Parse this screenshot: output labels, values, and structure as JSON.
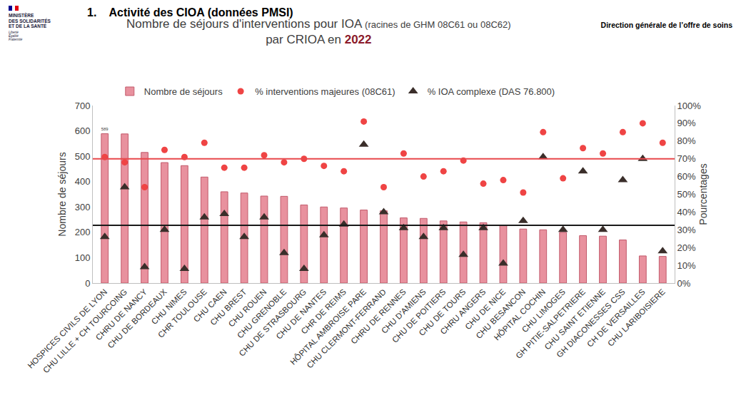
{
  "header": {
    "ministry": [
      "MINISTÈRE",
      "DES SOLIDARITÉS",
      "ET DE LA SANTÉ"
    ],
    "motto": [
      "Liberté",
      "Égalité",
      "Fraternité"
    ],
    "section": "1.    Activité des CIOA (données PMSI)",
    "department": "Direction générale de l’offre de soins"
  },
  "chart_data": {
    "type": "bar",
    "title": "Nombre de séjours d'interventions pour IOA",
    "title_note": "(racines de GHM 08C61 ou 08C62)",
    "subtitle": "par CRIOA en",
    "year": "2022",
    "y_label": "Nombre de séjours",
    "y2_label": "Pourcentages",
    "categories": [
      "HOSPICES CIVILS DE LYON",
      "CHU LILLE + CH TOURCOING",
      "CHRU DE NANCY",
      "CHU DE BORDEAUX",
      "CHU NIMES",
      "CHR TOULOUSE",
      "CHU CAEN",
      "CHU BREST",
      "CHU ROUEN",
      "CHU GRENOBLE",
      "CHU DE STRASBOURG",
      "CHU DE NANTES",
      "CHR DE REIMS",
      "HÔPITAL AMBROISE PARE",
      "CHU CLERMONT-FERRAND",
      "CHRU DE RENNES",
      "CHU D'AMIENS",
      "CHU DE POITIERS",
      "CHU DE TOURS",
      "CHRU ANGERS",
      "CHU DE NICE",
      "CHU BESANCON",
      "HÔPITAL COCHIN",
      "CHU LIMOGES",
      "GH PITIE-SALPETRIERE",
      "CHU SAINT ETIENNE",
      "GH DIACONESSES CSS",
      "CH DE VERSAILLES",
      "CHU LARIBOISIERE"
    ],
    "series": [
      {
        "name": "Nombre de séjours",
        "type": "bar",
        "color": "#e8919e",
        "data_labels": true,
        "values": [
          589,
          588,
          515,
          475,
          463,
          418,
          360,
          355,
          343,
          342,
          308,
          300,
          296,
          288,
          285,
          257,
          255,
          245,
          241,
          238,
          228,
          213,
          210,
          200,
          187,
          185,
          170,
          107,
          105
        ],
        "value_labels": [
          "589",
          null,
          null,
          null,
          null,
          null,
          null,
          null,
          null,
          null,
          null,
          null,
          null,
          null,
          null,
          null,
          null,
          null,
          null,
          null,
          null,
          null,
          null,
          null,
          null,
          null,
          null,
          null,
          null
        ]
      },
      {
        "name": "% interventions majeures (08C61)",
        "type": "scatter",
        "marker": "circle",
        "color": "#ef4444",
        "axis": "y2",
        "values": [
          71,
          68,
          54,
          75,
          71,
          79,
          65,
          65,
          72,
          68,
          70,
          66,
          63,
          91,
          54,
          73,
          60,
          63,
          69,
          56,
          58,
          51,
          85,
          59,
          76,
          73,
          85,
          90,
          79
        ]
      },
      {
        "name": "% IOA complexe (DAS 76.800)",
        "type": "scatter",
        "marker": "triangle-up",
        "color": "#3a2e2a",
        "axis": "y2",
        "values": [
          26,
          54,
          9,
          30,
          8,
          37,
          39,
          26,
          37,
          17,
          8,
          27,
          33,
          78,
          40,
          31,
          26,
          31,
          16,
          31,
          11,
          35,
          71,
          30,
          63,
          30,
          58,
          70,
          18
        ]
      }
    ],
    "reference_lines": [
      {
        "value": 70,
        "axis": "y2",
        "color": "#e8474b"
      },
      {
        "value": 32.5,
        "axis": "y2",
        "color": "#1a1a1a"
      }
    ],
    "ylim": [
      0,
      700
    ],
    "yticks": [
      0,
      100,
      200,
      300,
      400,
      500,
      600,
      700
    ],
    "y2lim": [
      0,
      100
    ],
    "y2ticks": [
      {
        "value": 0,
        "label": "0%"
      },
      {
        "value": 10,
        "label": "10%"
      },
      {
        "value": 20,
        "label": "20%"
      },
      {
        "value": 30,
        "label": "30%"
      },
      {
        "value": 40,
        "label": "40%"
      },
      {
        "value": 50,
        "label": "50%"
      },
      {
        "value": 60,
        "label": "60%"
      },
      {
        "value": 70,
        "label": "70%"
      },
      {
        "value": 80,
        "label": "80%"
      },
      {
        "value": 90,
        "label": "90%"
      },
      {
        "value": 100,
        "label": "100%"
      }
    ],
    "legend": "top",
    "grid": false
  }
}
